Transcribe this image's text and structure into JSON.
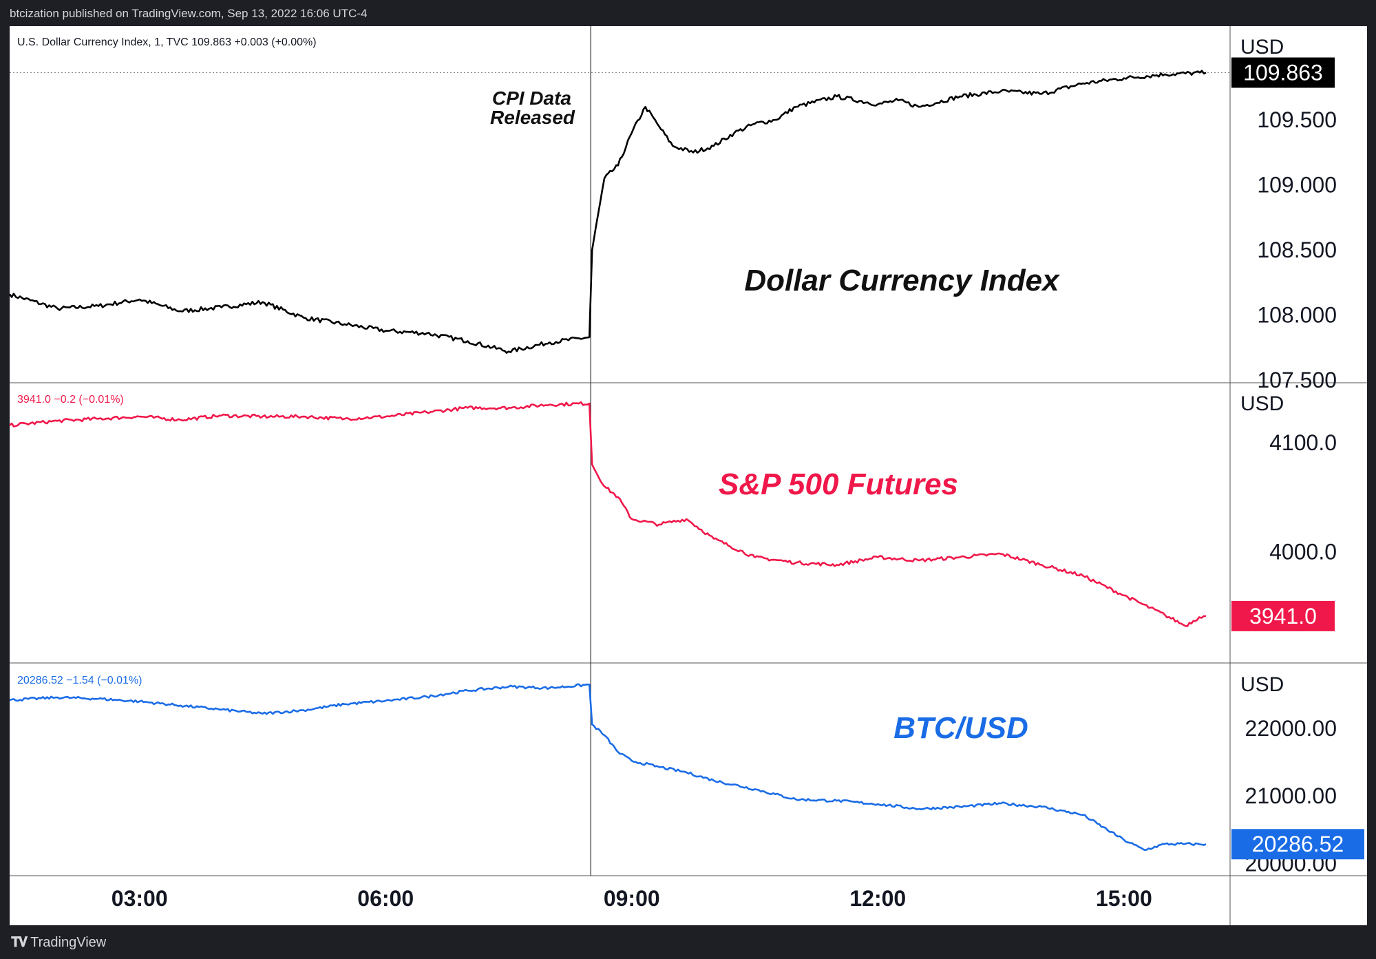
{
  "published_line": "btcization published on TradingView.com, Sep 13, 2022 16:06 UTC-4",
  "footer_brand": "TradingView",
  "colors": {
    "dxy": "#000000",
    "spx": "#f0184a",
    "btc": "#1a6ce6",
    "grid": "#cfcfcf",
    "frame": "#1e1f24"
  },
  "chart_data": [
    {
      "type": "line",
      "pane": "top",
      "header": "U.S. Dollar Currency Index, 1, TVC  109.863  +0.003 (+0.00%)",
      "label": "Dollar Currency Index",
      "axis_unit": "USD",
      "y_ticks": [
        "109.500",
        "109.000",
        "108.500",
        "108.000",
        "107.500"
      ],
      "ylim": [
        107.48,
        110.22
      ],
      "last_price_label": "109.863",
      "last_value": 109.863,
      "annotation": "CPI Data\nReleased",
      "annotation_time": "08:30",
      "x": [
        "01:25",
        "02:00",
        "02:30",
        "03:00",
        "03:30",
        "04:00",
        "04:30",
        "05:00",
        "05:30",
        "06:00",
        "06:30",
        "07:00",
        "07:30",
        "08:00",
        "08:29",
        "08:31",
        "08:40",
        "08:50",
        "09:00",
        "09:10",
        "09:20",
        "09:30",
        "09:45",
        "10:00",
        "10:15",
        "10:30",
        "10:45",
        "11:00",
        "11:30",
        "12:00",
        "12:15",
        "12:30",
        "13:00",
        "13:30",
        "14:00",
        "14:30",
        "15:00",
        "15:30",
        "16:00"
      ],
      "values": [
        108.16,
        108.05,
        108.07,
        108.12,
        108.03,
        108.06,
        108.1,
        107.98,
        107.93,
        107.88,
        107.86,
        107.8,
        107.72,
        107.79,
        107.83,
        108.5,
        109.05,
        109.15,
        109.4,
        109.6,
        109.45,
        109.3,
        109.25,
        109.3,
        109.4,
        109.47,
        109.5,
        109.6,
        109.68,
        109.62,
        109.65,
        109.6,
        109.68,
        109.72,
        109.7,
        109.78,
        109.82,
        109.85,
        109.863
      ]
    },
    {
      "type": "line",
      "pane": "middle",
      "header": "3941.0  −0.2 (−0.01%)",
      "label": "S&P 500 Futures",
      "axis_unit": "USD",
      "y_ticks": [
        "4100.0",
        "4000.0"
      ],
      "ylim": [
        3898,
        4155
      ],
      "last_price_label": "3941.0",
      "last_value": 3941.0,
      "x": [
        "01:25",
        "02:00",
        "02:30",
        "03:00",
        "03:30",
        "04:00",
        "04:30",
        "05:00",
        "05:30",
        "06:00",
        "06:30",
        "07:00",
        "07:30",
        "08:00",
        "08:29",
        "08:31",
        "08:40",
        "08:50",
        "09:00",
        "09:20",
        "09:40",
        "10:00",
        "10:30",
        "11:00",
        "11:30",
        "12:00",
        "12:30",
        "13:00",
        "13:30",
        "14:00",
        "14:30",
        "15:00",
        "15:30",
        "15:45",
        "15:55",
        "16:00"
      ],
      "values": [
        4116,
        4120,
        4122,
        4124,
        4121,
        4125,
        4124,
        4124,
        4122,
        4124,
        4128,
        4132,
        4132,
        4135,
        4136,
        4080,
        4060,
        4050,
        4030,
        4025,
        4030,
        4012,
        3995,
        3990,
        3988,
        3995,
        3992,
        3995,
        3998,
        3988,
        3978,
        3960,
        3942,
        3932,
        3940,
        3941.0
      ]
    },
    {
      "type": "line",
      "pane": "bottom",
      "header": "20286.52  −1.54 (−0.01%)",
      "label": "BTC/USD",
      "axis_unit": "USD",
      "y_ticks": [
        "22000.00",
        "21000.00",
        "20000.00"
      ],
      "ylim": [
        19820,
        22970
      ],
      "last_price_label": "20286.52",
      "last_value": 20286.52,
      "x": [
        "01:25",
        "02:00",
        "02:30",
        "03:00",
        "03:30",
        "04:00",
        "04:30",
        "05:00",
        "05:30",
        "06:00",
        "06:30",
        "07:00",
        "07:30",
        "08:00",
        "08:29",
        "08:31",
        "08:40",
        "08:50",
        "09:00",
        "09:20",
        "09:40",
        "10:00",
        "10:30",
        "11:00",
        "11:30",
        "12:00",
        "12:30",
        "13:00",
        "13:30",
        "14:00",
        "14:30",
        "15:00",
        "15:15",
        "15:30",
        "16:00"
      ],
      "values": [
        22420,
        22460,
        22440,
        22400,
        22340,
        22280,
        22220,
        22270,
        22360,
        22410,
        22470,
        22560,
        22620,
        22600,
        22650,
        22060,
        21900,
        21650,
        21520,
        21430,
        21350,
        21230,
        21100,
        20950,
        20930,
        20880,
        20810,
        20840,
        20890,
        20840,
        20720,
        20350,
        20200,
        20290,
        20286.52
      ]
    }
  ],
  "x_axis": {
    "tick_labels": [
      "03:00",
      "06:00",
      "09:00",
      "12:00",
      "15:00"
    ]
  }
}
